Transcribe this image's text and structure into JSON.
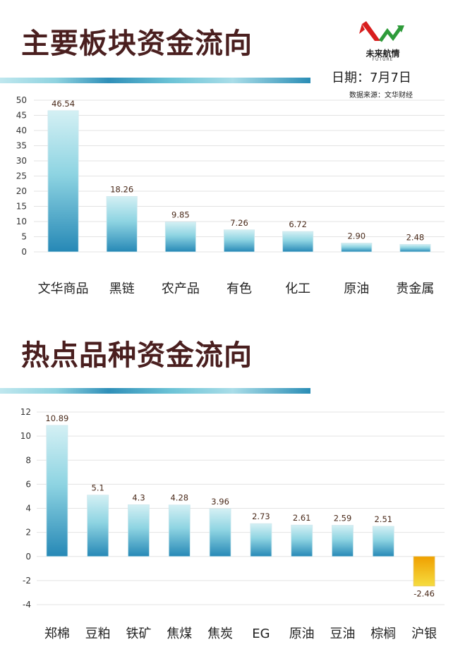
{
  "header": {
    "logo_text": "未来航情",
    "logo_sub": "FUTURE",
    "date": "日期：7月7日",
    "source": "数据来源：文华财经"
  },
  "chart_data": [
    {
      "type": "bar",
      "title": "主要板块资金流向",
      "categories": [
        "文华商品",
        "黑链",
        "农产品",
        "有色",
        "化工",
        "原油",
        "贵金属"
      ],
      "values": [
        46.54,
        18.26,
        9.85,
        7.26,
        6.72,
        2.9,
        2.48
      ],
      "value_labels": [
        "46.54",
        "18.26",
        "9.85",
        "7.26",
        "6.72",
        "2.90",
        "2.48"
      ],
      "yticks": [
        0,
        5,
        10,
        15,
        20,
        25,
        30,
        35,
        40,
        45,
        50
      ],
      "ylim": [
        0,
        50
      ],
      "grid": true,
      "colors": {
        "positive_top": "#d4f0f4",
        "positive_mid": "#8ed4e2",
        "positive_bottom": "#2688b6"
      }
    },
    {
      "type": "bar",
      "title": "热点品种资金流向",
      "categories": [
        "郑棉",
        "豆粕",
        "铁矿",
        "焦煤",
        "焦炭",
        "EG",
        "原油",
        "豆油",
        "棕榈",
        "沪银"
      ],
      "values": [
        10.89,
        5.1,
        4.3,
        4.28,
        3.96,
        2.73,
        2.61,
        2.59,
        2.51,
        -2.46
      ],
      "value_labels": [
        "10.89",
        "5.1",
        "4.3",
        "4.28",
        "3.96",
        "2.73",
        "2.61",
        "2.59",
        "2.51",
        "-2.46"
      ],
      "yticks": [
        -4,
        -2,
        0,
        2,
        4,
        6,
        8,
        10,
        12
      ],
      "ylim": [
        -4,
        12
      ],
      "grid": true,
      "colors": {
        "positive_top": "#d4f0f4",
        "positive_mid": "#8ed4e2",
        "positive_bottom": "#2688b6",
        "negative_top": "#f0a000",
        "negative_bottom": "#f5dc40"
      }
    }
  ]
}
